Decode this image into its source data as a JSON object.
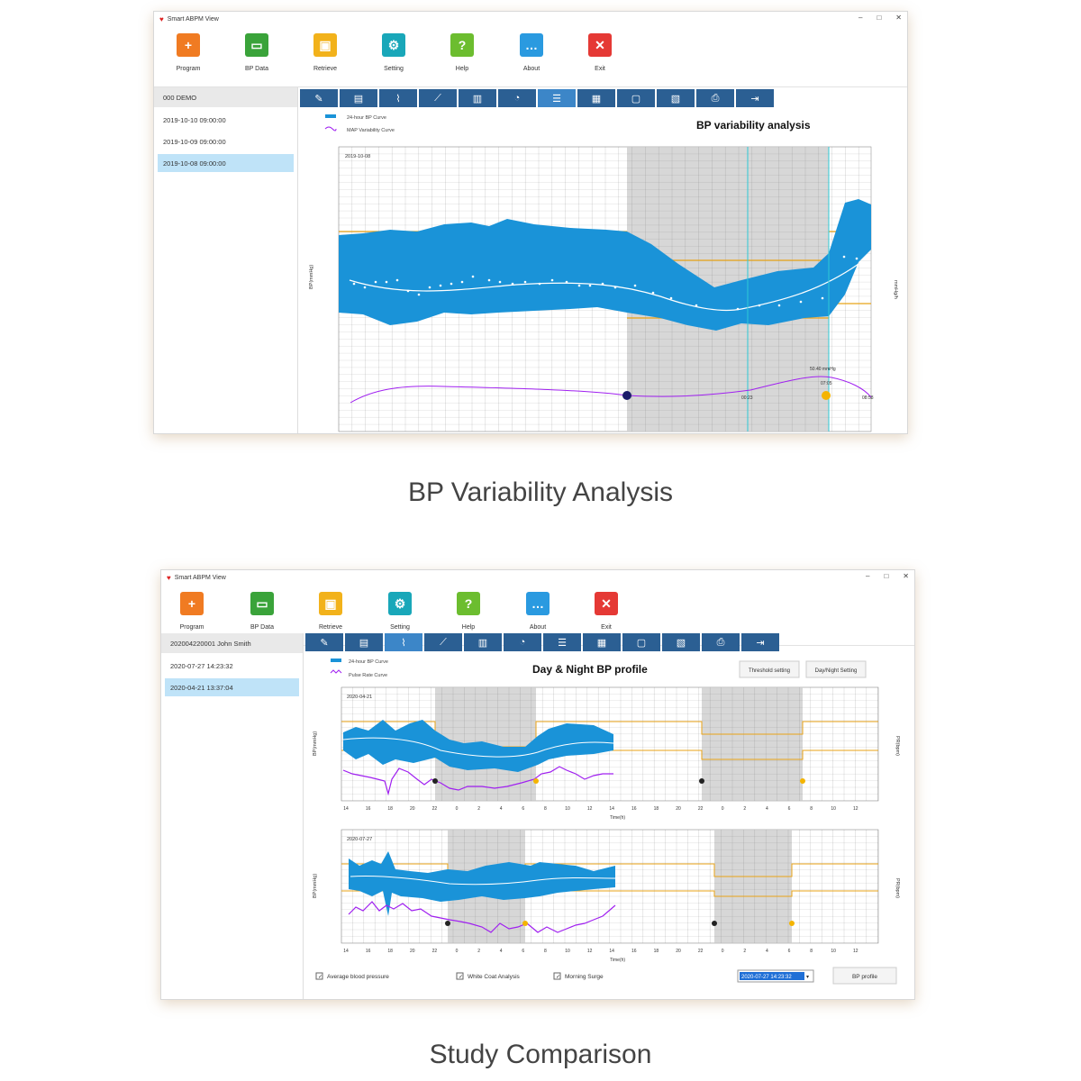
{
  "app_title": "Smart ABPM View",
  "toolbar": [
    {
      "label": "Program",
      "icon": "add-user-icon",
      "color": "#f07b22"
    },
    {
      "label": "BP Data",
      "icon": "folder-icon",
      "color": "#3aa33a"
    },
    {
      "label": "Retrieve",
      "icon": "retrieve-icon",
      "color": "#f2b21b"
    },
    {
      "label": "Setting",
      "icon": "gear-icon",
      "color": "#19a7b9"
    },
    {
      "label": "Help",
      "icon": "help-icon",
      "color": "#6cbd2f"
    },
    {
      "label": "About",
      "icon": "chat-icon",
      "color": "#2a9ae0"
    },
    {
      "label": "Exit",
      "icon": "close-icon",
      "color": "#e53935"
    }
  ],
  "screen1": {
    "patient": "000 DEMO",
    "dates": [
      "2019-10-10 09:00:00",
      "2019-10-09 09:00:00",
      "2019-10-08 09:00:00"
    ],
    "selected_index": 2,
    "chart_title": "BP variability analysis",
    "legend": [
      "24-hour BP Curve",
      "MAP Variability Curve"
    ],
    "date_label": "2019-10-08",
    "y_left_label": "BP(mmHg)",
    "y_right_label": "mmHg/h",
    "annotations": [
      "00:23",
      "07:05",
      "50.40 mmHg",
      "08:58"
    ],
    "caption": "BP Variability Analysis"
  },
  "screen2": {
    "patient": "202004220001 John Smith",
    "dates": [
      "2020-07-27 14:23:32",
      "2020-04-21 13:37:04"
    ],
    "selected_index": 1,
    "chart_title": "Day & Night BP profile",
    "legend": [
      "24-hour BP Curve",
      "Pulse Rate Curve"
    ],
    "buttons": [
      "Threshold setting",
      "Day/Night Setting"
    ],
    "chart1_date": "2020-04-21",
    "chart2_date": "2020-07-27",
    "y_left_label": "BP(mmHg)",
    "y_right_label": "PR(bpm)",
    "x_ticks": [
      "14",
      "16",
      "18",
      "20",
      "22",
      "0",
      "2",
      "4",
      "6",
      "8",
      "10",
      "12",
      "14",
      "16",
      "18",
      "20",
      "22",
      "0",
      "2",
      "4",
      "6",
      "8",
      "10",
      "12"
    ],
    "x_unit": "Time(h)",
    "checks": [
      "Average blood pressure",
      "White Coat Analysis",
      "Morning Surge"
    ],
    "date_select": "2020-07-27 14:23:32",
    "profile_button": "BP profile",
    "caption": "Study Comparison"
  }
}
